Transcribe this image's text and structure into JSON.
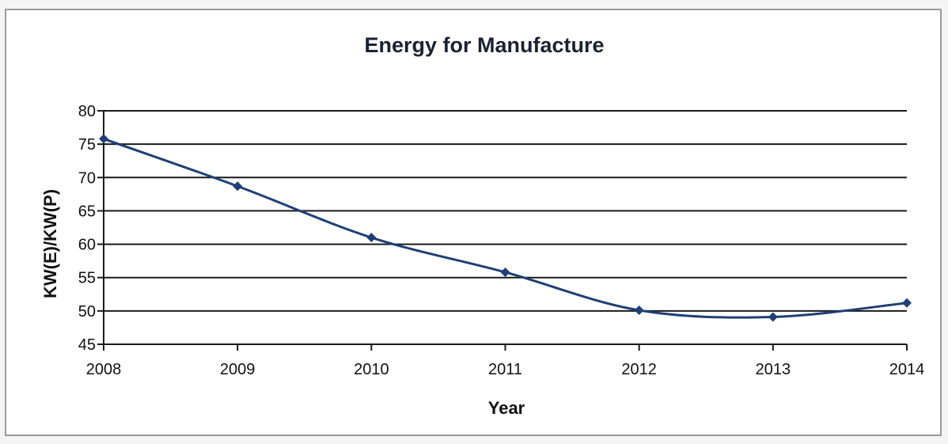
{
  "chart_data": {
    "type": "line",
    "title": "Energy for Manufacture",
    "xlabel": "Year",
    "ylabel": "KW(E)/KW(P)",
    "x": [
      2008,
      2009,
      2010,
      2011,
      2012,
      2013,
      2014
    ],
    "x_ticks": [
      "2008",
      "2009",
      "2010",
      "2011",
      "2012",
      "2013",
      "2014"
    ],
    "y_ticks": [
      "45",
      "50",
      "55",
      "60",
      "65",
      "70",
      "75",
      "80"
    ],
    "ylim": [
      45,
      80
    ],
    "grid": "horizontal",
    "smooth": true,
    "marker": "diamond",
    "series_color": "#1f3f75",
    "series": [
      {
        "values": [
          75.8,
          68.7,
          61.0,
          55.8,
          50.1,
          49.1,
          51.2
        ]
      }
    ]
  }
}
